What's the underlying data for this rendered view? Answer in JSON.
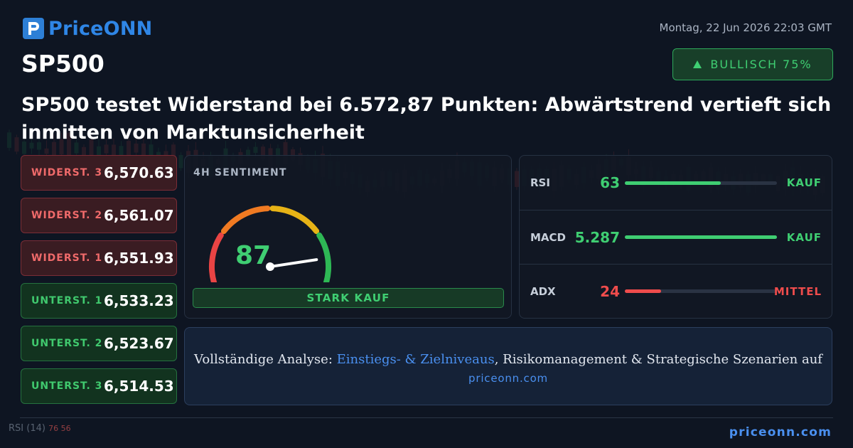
{
  "brand": {
    "name": "PriceONN",
    "logo_icon": "priceonn-logo-icon",
    "accent": "#2f86e6"
  },
  "date": "Montag, 22 Jun 2026 22:03 GMT",
  "symbol": "SP500",
  "badge": {
    "arrow_icon": "triangle-up-icon",
    "label": "BULLISCH 75%",
    "color": "#3fce72"
  },
  "headline": "SP500 testet Widerstand bei 6.572,87 Punkten: Abwärtstrend vertieft sich inmitten von Marktunsicherheit",
  "levels": [
    {
      "label": "WIDERST. 3",
      "value": "6,570.63",
      "kind": "resistance"
    },
    {
      "label": "WIDERST. 2",
      "value": "6,561.07",
      "kind": "resistance"
    },
    {
      "label": "WIDERST. 1",
      "value": "6,551.93",
      "kind": "resistance"
    },
    {
      "label": "UNTERST. 1",
      "value": "6,533.23",
      "kind": "support"
    },
    {
      "label": "UNTERST. 2",
      "value": "6,523.67",
      "kind": "support"
    },
    {
      "label": "UNTERST. 3",
      "value": "6,514.53",
      "kind": "support"
    }
  ],
  "sentiment": {
    "title": "4H SENTIMENT",
    "value": "87",
    "score": 87,
    "label": "STARK KAUF"
  },
  "indicators": [
    {
      "name": "RSI",
      "value": "63",
      "level": 0.63,
      "signal": "KAUF",
      "color": "#3fce72"
    },
    {
      "name": "MACD",
      "value": "5.287",
      "level": 1.0,
      "signal": "KAUF",
      "color": "#3fce72"
    },
    {
      "name": "ADX",
      "value": "24",
      "level": 0.24,
      "signal": "MITTEL",
      "color": "#ef4c4c"
    }
  ],
  "cta": {
    "prefix": "Vollständige Analyse: ",
    "link": "Einstiegs- & Zielniveaus",
    "suffix": ", Risikomanagement & Strategische Szenarien auf",
    "url": "priceonn.com"
  },
  "footer": {
    "url": "priceonn.com",
    "rsi_label": "RSI",
    "rsi_period": "(14)",
    "rsi_values": "76 56"
  }
}
